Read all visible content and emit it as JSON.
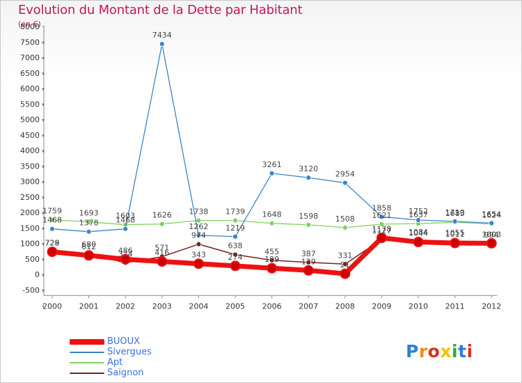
{
  "title": "Evolution du Montant de la Dette par Habitant",
  "subtitle": "(en €)",
  "logo": {
    "letters": [
      "P",
      "r",
      "o",
      "x",
      "i",
      "t",
      "i"
    ],
    "colors": [
      "#2b7fd6",
      "#f28c18",
      "#e0301e",
      "#f2c200",
      "#3aa935",
      "#2b7fd6",
      "#e0301e"
    ]
  },
  "chart_data": {
    "type": "line",
    "x": [
      "2000",
      "2001",
      "2002",
      "2003",
      "2004",
      "2005",
      "2006",
      "2007",
      "2008",
      "2009",
      "2010",
      "2011",
      "2012"
    ],
    "yticks": [
      "-500",
      "0",
      "500",
      "1000",
      "1500",
      "2000",
      "2500",
      "3000",
      "3500",
      "4000",
      "4500",
      "5000",
      "5500",
      "6000",
      "6500",
      "7000",
      "7500",
      "8000"
    ],
    "ylim": [
      -500,
      8000
    ],
    "grid": false,
    "legend_position": "bottom-left",
    "series": [
      {
        "name": "BUOUX",
        "color": "#ee1111",
        "values": [
          728,
          612,
          486,
          416,
          343,
          274,
          199,
          129,
          21,
          1178,
          1044,
          1011,
          1003
        ],
        "labels": [
          "728",
          "612",
          "486",
          "416",
          "343",
          "274",
          "199",
          "129",
          "21",
          "1178",
          "1044",
          "1011",
          "1003"
        ]
      },
      {
        "name": "Sivergues",
        "color": "#3d84c6",
        "values": [
          1468,
          1378,
          1468,
          7434,
          1262,
          1219,
          3261,
          3120,
          2954,
          1858,
          1752,
          1710,
          1654
        ],
        "labels": [
          "1468",
          "1378",
          "1468",
          "7434",
          "1262",
          "1219",
          "3261",
          "3120",
          "2954",
          "1858",
          "1752",
          "1710",
          "1654"
        ]
      },
      {
        "name": "Apt",
        "color": "#7fd25e",
        "values": [
          1759,
          1693,
          1603,
          1626,
          1738,
          1739,
          1648,
          1598,
          1508,
          1621,
          1637,
          1683,
          1624
        ],
        "labels": [
          "1759",
          "1693",
          "1603",
          "1626",
          "1738",
          "1739",
          "1648",
          "1598",
          "1508",
          "1621",
          "1637",
          "1683",
          "1624"
        ]
      },
      {
        "name": "Saignon",
        "color": "#7a1f1f",
        "values": [
          729,
          680,
          374,
          571,
          974,
          638,
          455,
          387,
          331,
          1127,
          1084,
          1055,
          994
        ],
        "labels": [
          "729",
          "680",
          "374",
          "571",
          "974",
          "638",
          "455",
          "387",
          "331",
          "1127",
          "1084",
          "1055",
          "994"
        ]
      }
    ]
  }
}
